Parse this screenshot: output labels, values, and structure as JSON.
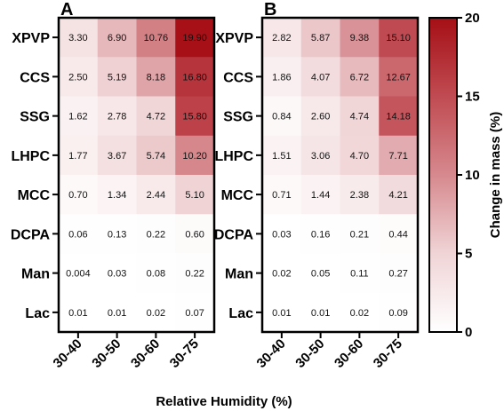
{
  "chart_data": [
    {
      "type": "heatmap",
      "panel": "A",
      "rows": [
        "XPVP",
        "CCS",
        "SSG",
        "LHPC",
        "MCC",
        "DCPA",
        "Man",
        "Lac"
      ],
      "columns": [
        "30-40",
        "30-50",
        "30-60",
        "30-75"
      ],
      "values": [
        [
          "3.30",
          "6.90",
          "10.76",
          "19.90"
        ],
        [
          "2.50",
          "5.19",
          "8.18",
          "16.80"
        ],
        [
          "1.62",
          "2.78",
          "4.72",
          "15.80"
        ],
        [
          "1.77",
          "3.67",
          "5.74",
          "10.20"
        ],
        [
          "0.70",
          "1.34",
          "2.44",
          "5.10"
        ],
        [
          "0.06",
          "0.13",
          "0.22",
          "0.60"
        ],
        [
          "0.004",
          "0.03",
          "0.08",
          "0.22"
        ],
        [
          "0.01",
          "0.01",
          "0.02",
          "0.07"
        ]
      ]
    },
    {
      "type": "heatmap",
      "panel": "B",
      "rows": [
        "XPVP",
        "CCS",
        "SSG",
        "LHPC",
        "MCC",
        "DCPA",
        "Man",
        "Lac"
      ],
      "columns": [
        "30-40",
        "30-50",
        "30-60",
        "30-75"
      ],
      "values": [
        [
          "2.82",
          "5.87",
          "9.38",
          "15.10"
        ],
        [
          "1.86",
          "4.07",
          "6.72",
          "12.67"
        ],
        [
          "0.84",
          "2.60",
          "4.74",
          "14.18"
        ],
        [
          "1.51",
          "3.06",
          "4.70",
          "7.71"
        ],
        [
          "0.71",
          "1.44",
          "2.38",
          "4.21"
        ],
        [
          "0.03",
          "0.16",
          "0.21",
          "0.44"
        ],
        [
          "0.02",
          "0.05",
          "0.11",
          "0.27"
        ],
        [
          "0.01",
          "0.01",
          "0.02",
          "0.09"
        ]
      ]
    }
  ],
  "xlabel": "Relative Humidity (%)",
  "colorbar": {
    "label": "Change in mass (%)",
    "ticks": [
      "0",
      "5",
      "10",
      "15",
      "20"
    ],
    "range": [
      0,
      20
    ],
    "color_low": "#ffffff",
    "color_high": "#a50f15"
  }
}
